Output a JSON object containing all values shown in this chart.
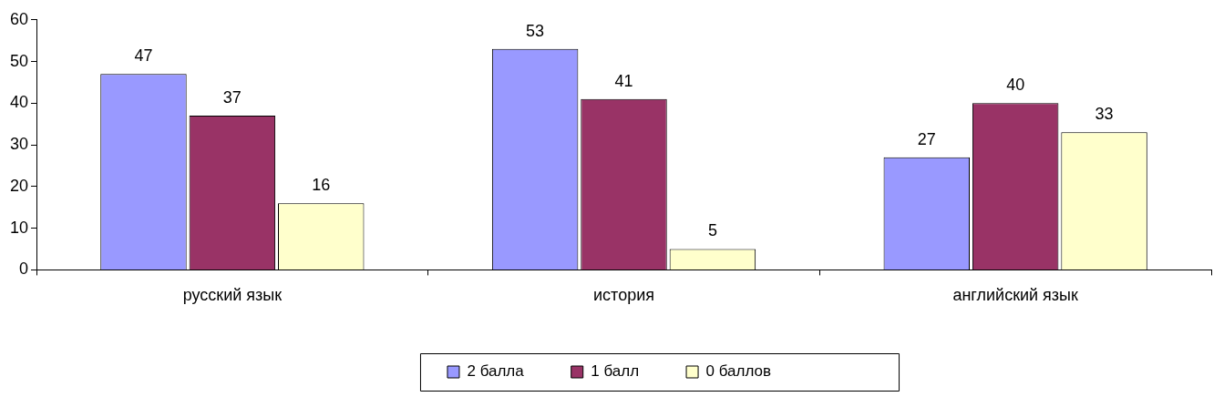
{
  "chart_data": {
    "type": "bar",
    "categories": [
      "русский язык",
      "история",
      "английский язык"
    ],
    "series": [
      {
        "name": "2 балла",
        "color": "#9999ff",
        "values": [
          47,
          53,
          27
        ]
      },
      {
        "name": "1 балл",
        "color": "#993366",
        "values": [
          37,
          41,
          40
        ]
      },
      {
        "name": "0 баллов",
        "color": "#ffffcc",
        "values": [
          16,
          5,
          33
        ]
      }
    ],
    "ylim": [
      0,
      60
    ],
    "yticks": [
      0,
      10,
      20,
      30,
      40,
      50,
      60
    ],
    "grid": false,
    "legend": "bottom",
    "data_labels": true
  }
}
